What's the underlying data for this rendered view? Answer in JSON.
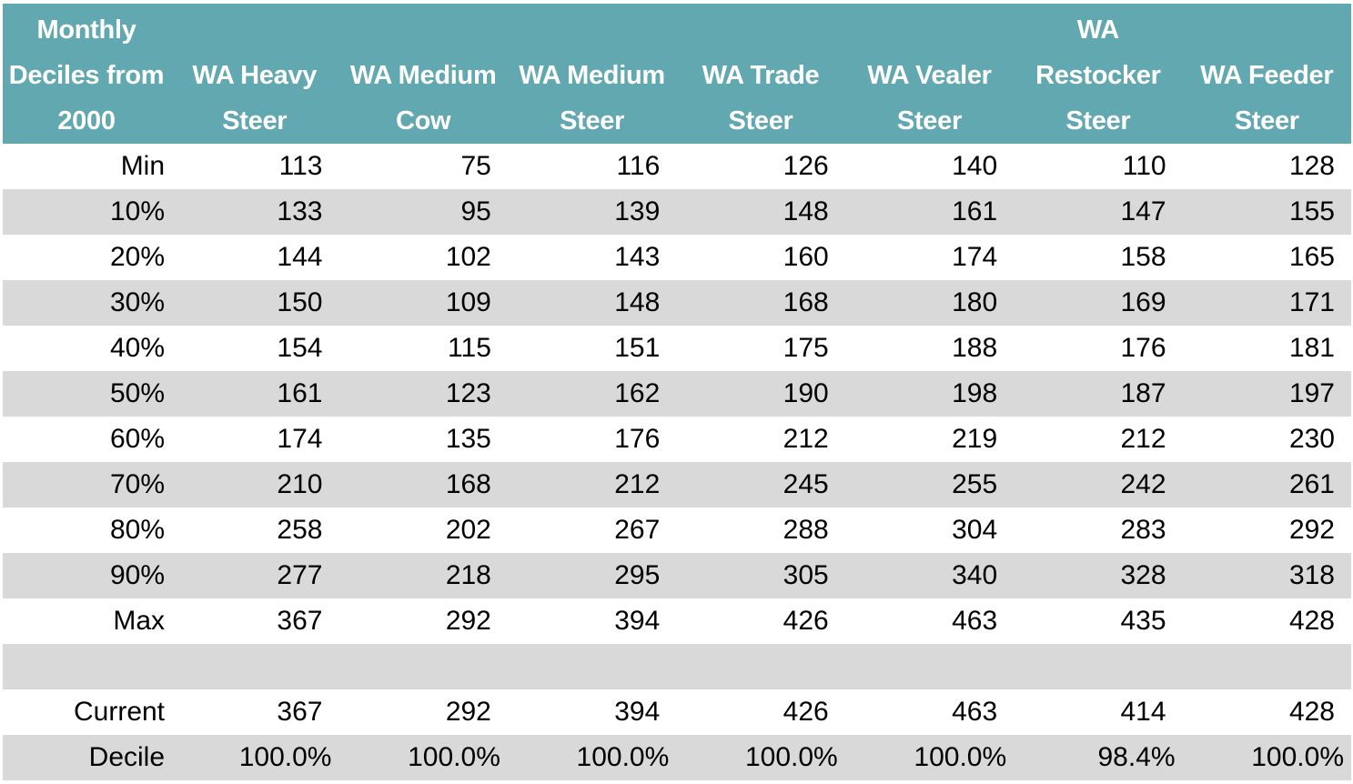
{
  "chart_data": {
    "type": "table",
    "header_color": "#62a8b0",
    "stripe_color": "#d9d9d9",
    "columns": [
      "Monthly Deciles from 2000",
      "WA Heavy Steer",
      "WA Medium Cow",
      "WA Medium Steer",
      "WA Trade Steer",
      "WA Vealer Steer",
      "WA Restocker Steer",
      "WA Feeder Steer"
    ],
    "rows": [
      {
        "label": "Min",
        "values": [
          "113",
          "75",
          "116",
          "126",
          "140",
          "110",
          "128"
        ]
      },
      {
        "label": "10%",
        "values": [
          "133",
          "95",
          "139",
          "148",
          "161",
          "147",
          "155"
        ]
      },
      {
        "label": "20%",
        "values": [
          "144",
          "102",
          "143",
          "160",
          "174",
          "158",
          "165"
        ]
      },
      {
        "label": "30%",
        "values": [
          "150",
          "109",
          "148",
          "168",
          "180",
          "169",
          "171"
        ]
      },
      {
        "label": "40%",
        "values": [
          "154",
          "115",
          "151",
          "175",
          "188",
          "176",
          "181"
        ]
      },
      {
        "label": "50%",
        "values": [
          "161",
          "123",
          "162",
          "190",
          "198",
          "187",
          "197"
        ]
      },
      {
        "label": "60%",
        "values": [
          "174",
          "135",
          "176",
          "212",
          "219",
          "212",
          "230"
        ]
      },
      {
        "label": "70%",
        "values": [
          "210",
          "168",
          "212",
          "245",
          "255",
          "242",
          "261"
        ]
      },
      {
        "label": "80%",
        "values": [
          "258",
          "202",
          "267",
          "288",
          "304",
          "283",
          "292"
        ]
      },
      {
        "label": "90%",
        "values": [
          "277",
          "218",
          "295",
          "305",
          "340",
          "328",
          "318"
        ]
      },
      {
        "label": "Max",
        "values": [
          "367",
          "292",
          "394",
          "426",
          "463",
          "435",
          "428"
        ]
      },
      {
        "label": "",
        "values": [
          "",
          "",
          "",
          "",
          "",
          "",
          ""
        ]
      },
      {
        "label": "Current",
        "values": [
          "367",
          "292",
          "394",
          "426",
          "463",
          "414",
          "428"
        ]
      },
      {
        "label": "Decile",
        "values": [
          "100.0%",
          "100.0%",
          "100.0%",
          "100.0%",
          "100.0%",
          "98.4%",
          "100.0%"
        ]
      }
    ]
  }
}
